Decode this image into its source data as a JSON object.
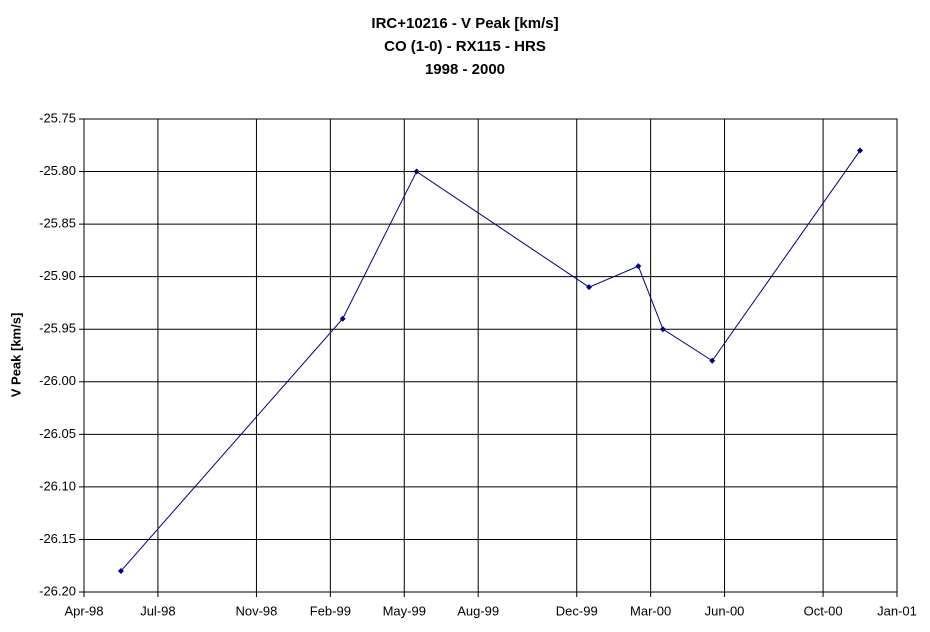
{
  "chart_data": {
    "type": "line",
    "title": [
      "IRC+10216 - V Peak [km/s]",
      "CO (1-0) - RX115 - HRS",
      "1998 - 2000"
    ],
    "y_label": "V Peak [km/s]",
    "x": [
      "May-98",
      "Feb-99",
      "May-99",
      "Dec-99",
      "Feb-00",
      "Mar-00",
      "May-00",
      "Nov-00"
    ],
    "series": [
      {
        "name": "V Peak",
        "color": "#000080",
        "values": [
          -26.18,
          -25.94,
          -25.8,
          -25.91,
          -25.89,
          -25.95,
          -25.98,
          -25.78
        ]
      }
    ],
    "xlim": [
      "Apr-98",
      "Jan-01"
    ],
    "xticks": [
      "Apr-98",
      "Jul-98",
      "Nov-98",
      "Feb-99",
      "May-99",
      "Aug-99",
      "Dec-99",
      "Mar-00",
      "Jun-00",
      "Oct-00",
      "Jan-01"
    ],
    "ylim": [
      -26.2,
      -25.75
    ],
    "yticks": [
      {
        "value": -26.2,
        "label": "-26.20"
      },
      -26.15,
      {
        "value": -26.1,
        "label": "-26.10"
      },
      -26.05,
      {
        "value": -26,
        "label": "-26.00"
      },
      -25.95,
      {
        "value": -25.9,
        "label": "-25.90"
      },
      -25.85,
      {
        "value": -25.8,
        "label": "-25.80"
      },
      -25.75
    ],
    "grid": true
  }
}
